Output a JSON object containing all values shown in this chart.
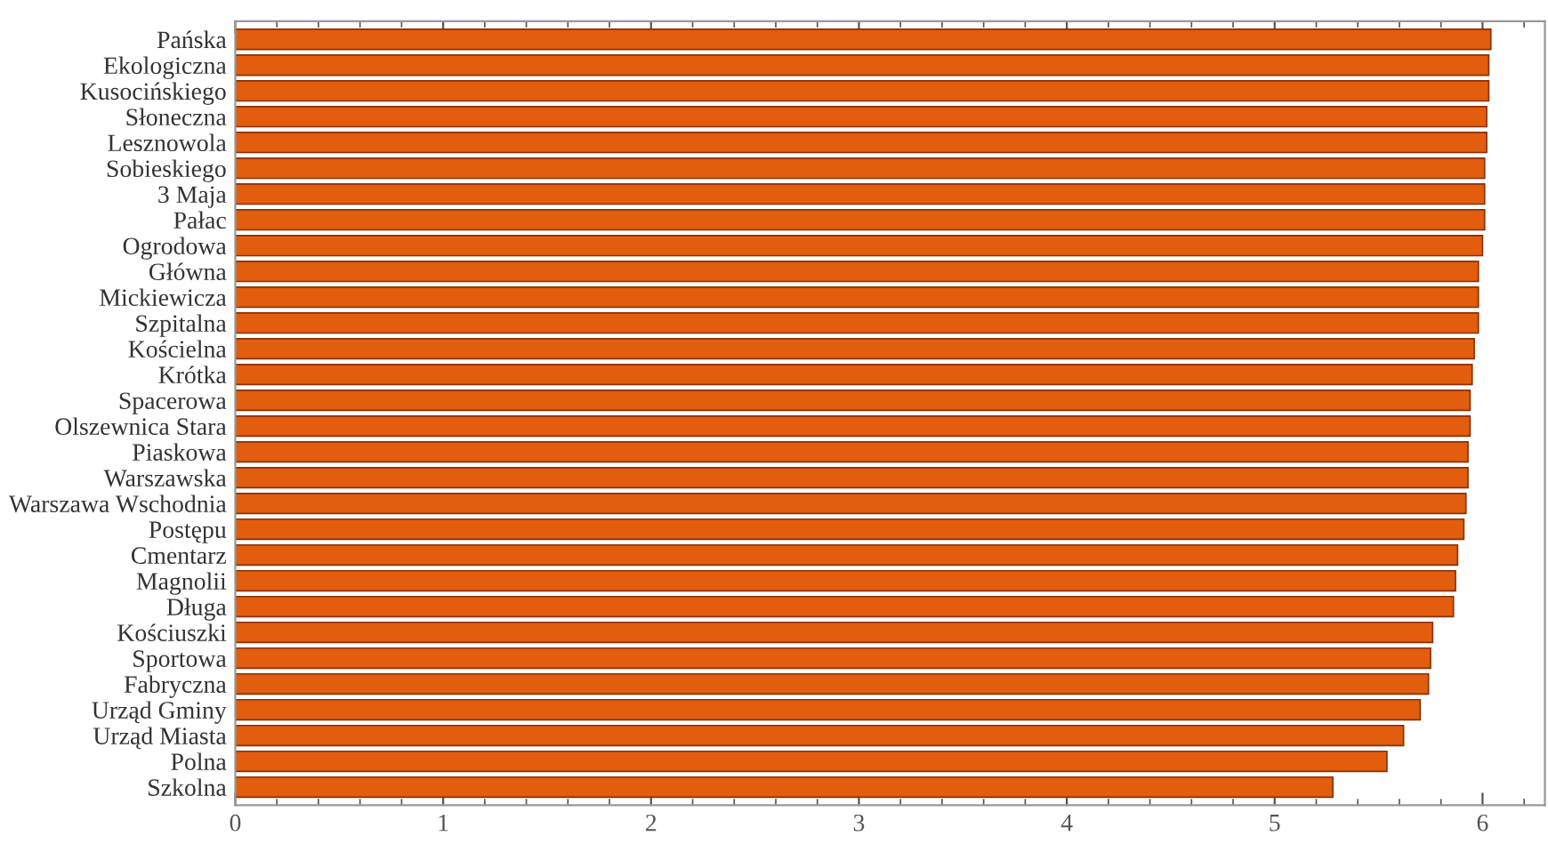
{
  "chart_data": {
    "type": "bar",
    "orientation": "horizontal",
    "categories": [
      "Pańska",
      "Ekologiczna",
      "Kusocińskiego",
      "Słoneczna",
      "Lesznowola",
      "Sobieskiego",
      "3 Maja",
      "Pałac",
      "Ogrodowa",
      "Główna",
      "Mickiewicza",
      "Szpitalna",
      "Kościelna",
      "Krótka",
      "Spacerowa",
      "Olszewnica Stara",
      "Piaskowa",
      "Warszawska",
      "Warszawa Wschodnia",
      "Postępu",
      "Cmentarz",
      "Magnolii",
      "Długa",
      "Kościuszki",
      "Sportowa",
      "Fabryczna",
      "Urząd Gminy",
      "Urząd Miasta",
      "Polna",
      "Szkolna"
    ],
    "values": [
      6.04,
      6.03,
      6.03,
      6.02,
      6.02,
      6.01,
      6.01,
      6.01,
      6.0,
      5.98,
      5.98,
      5.98,
      5.96,
      5.95,
      5.94,
      5.94,
      5.93,
      5.93,
      5.92,
      5.91,
      5.88,
      5.87,
      5.86,
      5.76,
      5.75,
      5.74,
      5.7,
      5.62,
      5.54,
      5.28
    ],
    "color": "#e35d0e",
    "xlim": [
      0,
      6.3
    ],
    "xticks": [
      0,
      1,
      2,
      3,
      4,
      5,
      6
    ],
    "grid": false
  }
}
